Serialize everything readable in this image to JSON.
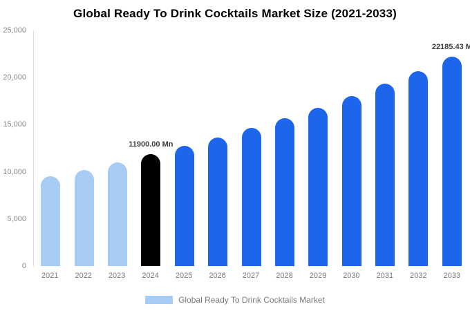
{
  "chart_data": {
    "type": "bar",
    "title": "Global Ready To Drink Cocktails Market Size (2021-2033)",
    "xlabel": "",
    "ylabel": "",
    "ylim": [
      0,
      25000
    ],
    "yticks": [
      "25,000",
      "20,000",
      "15,000",
      "10,000",
      "5,000",
      "0"
    ],
    "grid": false,
    "legend_position": "bottom",
    "categories": [
      "2021",
      "2022",
      "2023",
      "2024",
      "2025",
      "2026",
      "2027",
      "2028",
      "2029",
      "2030",
      "2031",
      "2032",
      "2033"
    ],
    "values": [
      9500,
      10200,
      11000,
      11900,
      12750,
      13670,
      14650,
      15700,
      16820,
      18030,
      19320,
      20700,
      22185.43
    ],
    "bar_colors": [
      "#A7CDF5",
      "#A7CDF5",
      "#A7CDF5",
      "#000000",
      "#1D66EC",
      "#1D66EC",
      "#1D66EC",
      "#1D66EC",
      "#1D66EC",
      "#1D66EC",
      "#1D66EC",
      "#1D66EC",
      "#1D66EC"
    ],
    "annotations": [
      {
        "year": "2024",
        "text": "11900.00 Mn"
      },
      {
        "year": "2033",
        "text": "22185.43 M"
      }
    ],
    "legend": {
      "label": "Global Ready To Drink Cocktails Market",
      "swatch_color": "#A7CDF5"
    }
  }
}
